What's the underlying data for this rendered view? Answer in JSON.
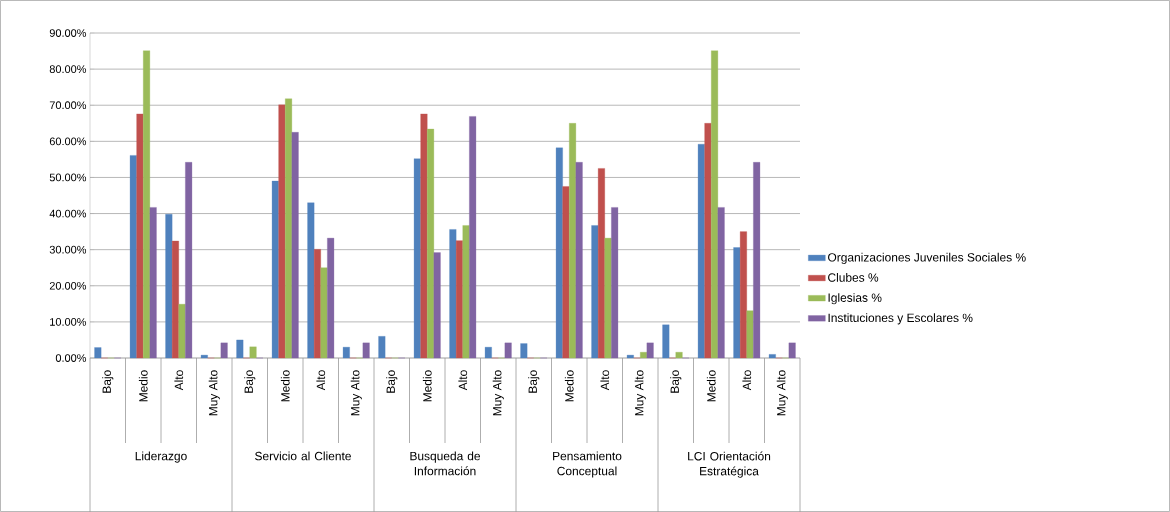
{
  "chart_data": {
    "type": "bar",
    "categories": [
      "Bajo",
      "Medio",
      "Alto",
      "Muy Alto",
      "Bajo",
      "Medio",
      "Alto",
      "Muy Alto",
      "Bajo",
      "Medio",
      "Alto",
      "Muy Alto",
      "Bajo",
      "Medio",
      "Alto",
      "Muy Alto",
      "Bajo",
      "Medio",
      "Alto",
      "Muy Alto"
    ],
    "annotations": [
      "Liderazgo",
      "Servicio al Cliente",
      "Busqueda de Información",
      "Pensamiento Conceptual",
      "LCI Orientación Estratégica"
    ],
    "series": [
      {
        "name": "Organizaciones Juveniles Sociales %",
        "color": "#4f81bd",
        "values": [
          2.9,
          56.1,
          39.8,
          0.8,
          5.0,
          49.0,
          43.0,
          3.0,
          6.0,
          55.2,
          35.6,
          3.0,
          4.0,
          58.2,
          36.7,
          0.8,
          9.2,
          59.2,
          30.6,
          1.0
        ]
      },
      {
        "name": "Clubes %",
        "color": "#c0504d",
        "values": [
          0,
          67.6,
          32.4,
          0,
          0,
          70.1,
          30.1,
          0,
          0,
          67.6,
          32.5,
          0,
          0,
          47.5,
          52.5,
          0,
          0,
          65.0,
          35.0,
          0
        ]
      },
      {
        "name": "Iglesias %",
        "color": "#9bbb59",
        "values": [
          0,
          85.1,
          14.9,
          0,
          3.1,
          71.8,
          25.0,
          0,
          0,
          63.4,
          36.7,
          0,
          0,
          65.0,
          33.2,
          1.6,
          1.6,
          85.1,
          13.1,
          0
        ]
      },
      {
        "name": "Instituciones y Escolares %",
        "color": "#8064a2",
        "values": [
          0,
          41.7,
          54.2,
          4.2,
          0,
          62.5,
          33.2,
          4.2,
          0,
          29.2,
          66.9,
          4.2,
          0,
          54.2,
          41.7,
          4.2,
          0,
          41.7,
          54.2,
          4.2
        ]
      }
    ],
    "ylim": [
      0,
      90
    ],
    "yticks": [
      {
        "value": 0,
        "label": "0.00%"
      },
      {
        "value": 10,
        "label": "10.00%"
      },
      {
        "value": 20,
        "label": "20.00%"
      },
      {
        "value": 30,
        "label": "30.00%"
      },
      {
        "value": 40,
        "label": "40.00%"
      },
      {
        "value": 50,
        "label": "50.00%"
      },
      {
        "value": 60,
        "label": "60.00%"
      },
      {
        "value": 70,
        "label": "70.00%"
      },
      {
        "value": 80,
        "label": "80.00%"
      },
      {
        "value": 90,
        "label": "90.00%"
      }
    ],
    "grid": "y",
    "legend": "right"
  }
}
